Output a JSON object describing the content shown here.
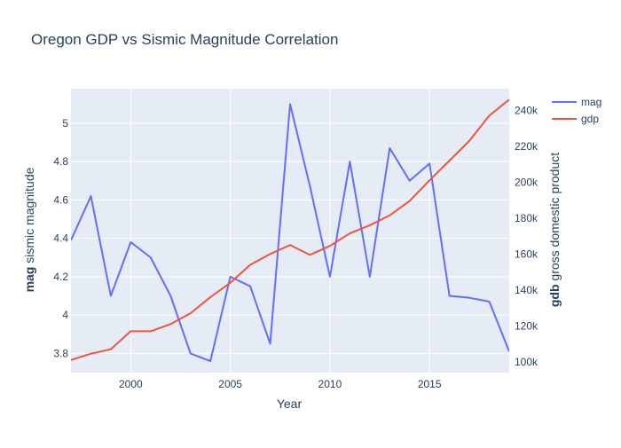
{
  "chart_data": {
    "type": "line",
    "title": "Oregon GDP vs Sismic Magnitude Correlation",
    "xlabel": "Year",
    "ylabel_left_bold": "mag",
    "ylabel_left_rest": " sismic magnitude",
    "ylabel_right_bold": "gdb",
    "ylabel_right_rest": " gross domestic product",
    "x": [
      1997,
      1998,
      1999,
      2000,
      2001,
      2002,
      2003,
      2004,
      2005,
      2006,
      2007,
      2008,
      2009,
      2010,
      2011,
      2012,
      2013,
      2014,
      2015,
      2016,
      2017,
      2018,
      2019
    ],
    "xlim": [
      1997,
      2019
    ],
    "xticks": [
      2000,
      2005,
      2010,
      2015
    ],
    "ylim_left": [
      3.7,
      5.18
    ],
    "yticks_left": [
      3.8,
      4,
      4.2,
      4.4,
      4.6,
      4.8,
      5
    ],
    "ytick_labels_left": [
      "3.8",
      "4",
      "4.2",
      "4.4",
      "4.6",
      "4.8",
      "5"
    ],
    "ylim_right": [
      94000,
      252000
    ],
    "yticks_right": [
      100000,
      120000,
      140000,
      160000,
      180000,
      200000,
      220000,
      240000
    ],
    "ytick_labels_right": [
      "100k",
      "120k",
      "140k",
      "160k",
      "180k",
      "200k",
      "220k",
      "240k"
    ],
    "grid": true,
    "legend_position": "top-right",
    "series": [
      {
        "name": "mag",
        "axis": "left",
        "color": "#636efa",
        "values": [
          4.39,
          4.62,
          4.1,
          4.38,
          4.3,
          4.1,
          3.8,
          3.76,
          4.2,
          4.15,
          3.85,
          5.1,
          4.67,
          4.2,
          4.8,
          4.2,
          4.87,
          4.7,
          4.79,
          4.1,
          4.09,
          4.07,
          3.81
        ]
      },
      {
        "name": "gdp",
        "axis": "right",
        "color": "#ef553b",
        "values": [
          101000,
          104500,
          107000,
          117000,
          117000,
          121000,
          127000,
          136000,
          144000,
          154000,
          160000,
          165000,
          159500,
          164500,
          171500,
          176000,
          181500,
          189500,
          201000,
          212000,
          223000,
          237000,
          246000
        ]
      }
    ]
  }
}
